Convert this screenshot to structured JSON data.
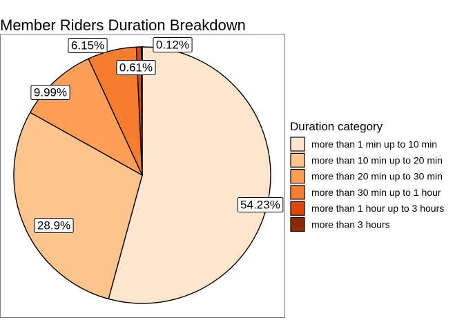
{
  "chart_data": {
    "type": "pie",
    "title": "Member Riders Duration Breakdown",
    "legend_title": "Duration category",
    "legend_position": "right",
    "categories": [
      "more than 1 min up to 10 min",
      "more than 10 min up to 20 min",
      "more than 20 min up to 30 min",
      "more than 30 min up to 1 hour",
      "more than 1 hour up to 3 hours",
      "more than 3 hours"
    ],
    "values": [
      54.23,
      28.9,
      9.99,
      6.15,
      0.61,
      0.12
    ],
    "labels": [
      "54.23%",
      "28.9%",
      "9.99%",
      "6.15%",
      "0.61%",
      "0.12%"
    ],
    "colors": [
      "#FEE6CE",
      "#FDC48E",
      "#FD9F57",
      "#F67C2F",
      "#E1470A",
      "#8C2A04"
    ]
  }
}
